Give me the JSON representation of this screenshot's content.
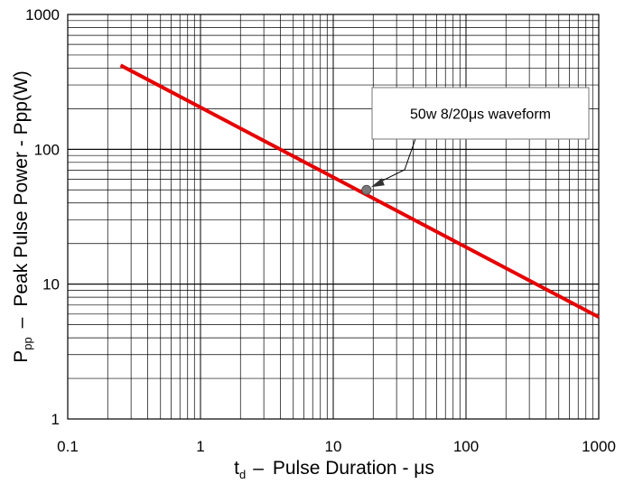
{
  "chart_data": {
    "type": "line",
    "xscale": "log",
    "yscale": "log",
    "xlim": [
      0.1,
      1000
    ],
    "ylim": [
      1,
      1000
    ],
    "x_tick_labels": [
      "0.1",
      "1",
      "10",
      "100",
      "1000"
    ],
    "y_tick_labels": [
      "1",
      "10",
      "100",
      "1000"
    ],
    "xlabel": {
      "main": "t",
      "sub": "d",
      "dash": "–",
      "rest": "Pulse Duration  - μs"
    },
    "ylabel": {
      "main": "P",
      "sub": "pp",
      "dash": "–",
      "rest": "Peak Pulse Power - Ppp(W)"
    },
    "grid": true,
    "series": [
      {
        "color": "#e60000",
        "points": [
          {
            "x": 0.25,
            "y": 420
          },
          {
            "x": 1000,
            "y": 5.7
          }
        ]
      }
    ],
    "annotation": {
      "text": "50w 8/20μs waveform",
      "point": {
        "x": 17.8,
        "y": 50
      }
    }
  }
}
